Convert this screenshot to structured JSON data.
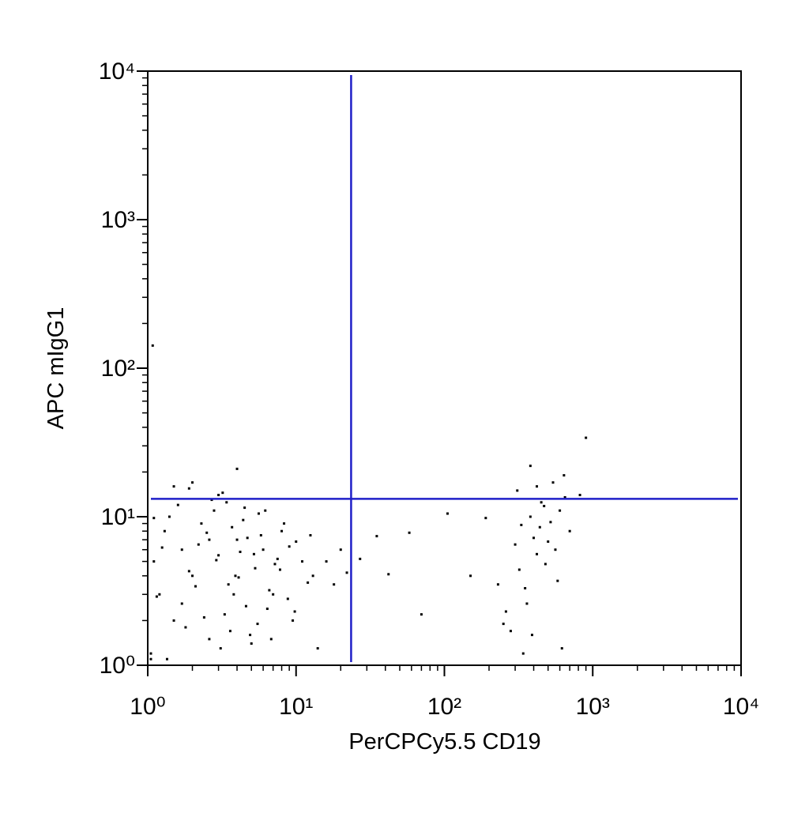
{
  "chart_data": {
    "type": "scatter",
    "xlabel": "PerCPCy5.5 CD19",
    "ylabel": "APC mIgG1",
    "log_x": true,
    "log_y": true,
    "xlim": [
      1,
      10000
    ],
    "ylim": [
      1,
      10000
    ],
    "xticks": [
      {
        "value": 1,
        "label": "10⁰"
      },
      {
        "value": 10,
        "label": "10¹"
      },
      {
        "value": 100,
        "label": "10²"
      },
      {
        "value": 1000,
        "label": "10³"
      },
      {
        "value": 10000,
        "label": "10⁴"
      }
    ],
    "yticks": [
      {
        "value": 1,
        "label": "10⁰"
      },
      {
        "value": 10,
        "label": "10¹"
      },
      {
        "value": 100,
        "label": "10²"
      },
      {
        "value": 1000,
        "label": "10³"
      },
      {
        "value": 10000,
        "label": "10⁴"
      }
    ],
    "quadrant_x": 23.5,
    "quadrant_y": 13.2,
    "quadrant_color": "#1f1fc8",
    "series": [
      {
        "color": "#000000",
        "x": [
          1.1,
          1.2,
          1.3,
          1.5,
          1.7,
          2,
          2.3,
          2.6,
          3,
          3.5,
          4,
          4.6,
          5.3,
          6,
          7,
          8,
          9.5,
          11,
          13,
          1.05,
          1.4,
          1.8,
          2.2,
          2.8,
          3.3,
          3.9,
          4.4,
          5,
          5.8,
          6.6,
          7.5,
          8.8,
          10,
          12,
          1.15,
          1.6,
          2.1,
          2.5,
          3.1,
          3.7,
          4.2,
          4.9,
          5.6,
          6.4,
          7.2,
          8.3,
          1.25,
          1.9,
          2.4,
          2.9,
          3.4,
          4.1,
          4.7,
          5.5,
          6.2,
          7.8,
          9,
          1.1,
          1.35,
          2.7,
          3.6,
          4.5,
          1.5,
          2,
          3,
          16,
          18,
          20,
          22,
          14,
          1.08,
          1.7,
          2.6,
          3.8,
          5.2,
          6.8,
          9.8,
          12.5,
          1.05,
          4,
          1.9,
          3.2,
          27,
          35,
          42,
          58,
          70,
          105,
          150,
          190,
          260,
          300,
          330,
          350,
          380,
          400,
          420,
          450,
          480,
          520,
          560,
          600,
          650,
          700,
          280,
          320,
          360,
          440,
          500,
          580,
          380,
          340,
          420,
          470,
          620,
          820,
          900,
          230,
          250,
          310,
          390,
          540,
          640
        ],
        "y": [
          5,
          3,
          8,
          2,
          6,
          4,
          9,
          1.5,
          5.5,
          3.5,
          7,
          2.5,
          4.5,
          6,
          3,
          8,
          2,
          5,
          4,
          1.2,
          10,
          1.8,
          6.5,
          11,
          2.2,
          4,
          9.5,
          1.4,
          7.5,
          3.2,
          5.2,
          2.8,
          6.8,
          3.6,
          2.9,
          12,
          3.4,
          7.8,
          1.3,
          8.5,
          5.8,
          1.6,
          10.5,
          2.4,
          4.8,
          9,
          6.2,
          4.3,
          2.1,
          5.1,
          12.5,
          3.9,
          7.2,
          1.9,
          11,
          4.4,
          6.3,
          9.8,
          1.1,
          13,
          1.7,
          11.5,
          16,
          17,
          14,
          5,
          3.5,
          6,
          4.2,
          1.3,
          142,
          2.6,
          7,
          3,
          5.6,
          1.5,
          2.3,
          7.5,
          1.1,
          21,
          15.5,
          14.5,
          5.2,
          7.4,
          4.1,
          7.8,
          2.2,
          10.5,
          4,
          9.8,
          2.3,
          6.5,
          8.8,
          3.3,
          10,
          7.2,
          5.6,
          12.5,
          4.8,
          9.2,
          6,
          11,
          13.5,
          8,
          1.7,
          4.4,
          2.6,
          8.5,
          6.8,
          3.7,
          22,
          1.2,
          16,
          11.8,
          1.3,
          14,
          34,
          3.5,
          1.9,
          15,
          1.6,
          17,
          19
        ]
      }
    ]
  }
}
